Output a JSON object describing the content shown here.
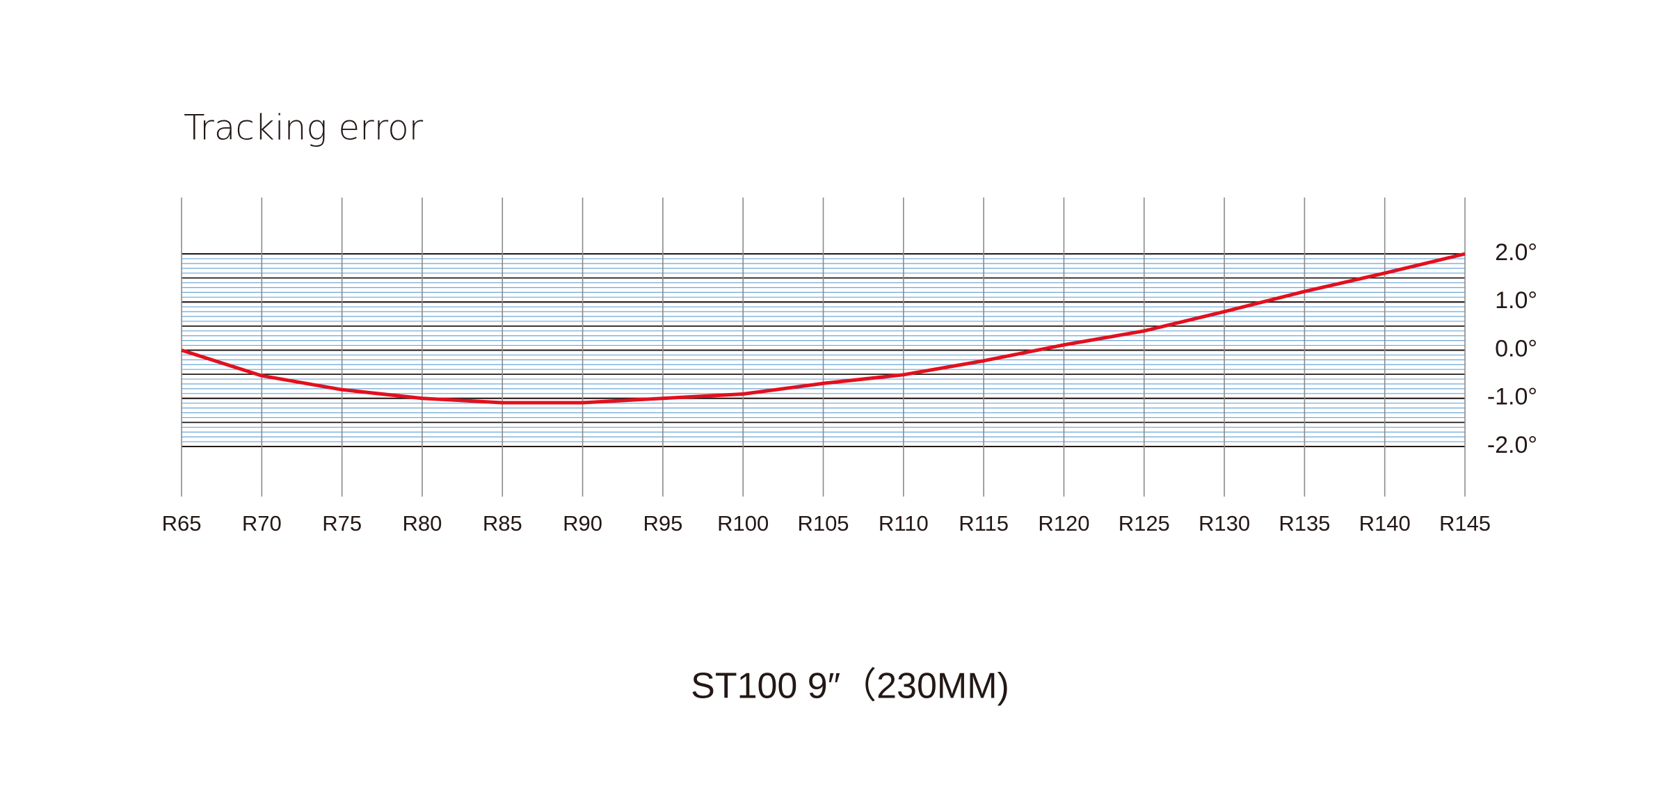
{
  "chart_data": {
    "type": "line",
    "title": "Tracking error",
    "subtitle": "ST100   9″（230MM)",
    "categories": [
      "R65",
      "R70",
      "R75",
      "R80",
      "R85",
      "R90",
      "R95",
      "R100",
      "R105",
      "R110",
      "R115",
      "R120",
      "R125",
      "R130",
      "R135",
      "R140",
      "R145"
    ],
    "values": [
      0,
      -0.53,
      -0.82,
      -1.0,
      -1.09,
      -1.09,
      -1.0,
      -0.91,
      -0.69,
      -0.51,
      -0.22,
      0.11,
      0.4,
      0.8,
      1.22,
      1.6,
      2.0
    ],
    "color": "#e2101e",
    "ylim": [
      -2,
      2
    ],
    "yticks": [
      {
        "value": 2,
        "label": "2.0°"
      },
      {
        "value": 1,
        "label": "1.0°"
      },
      {
        "value": 0,
        "label": "0.0°"
      },
      {
        "value": -1,
        "label": "-1.0°"
      },
      {
        "value": -2,
        "label": "-2.0°"
      }
    ],
    "grid": true
  }
}
